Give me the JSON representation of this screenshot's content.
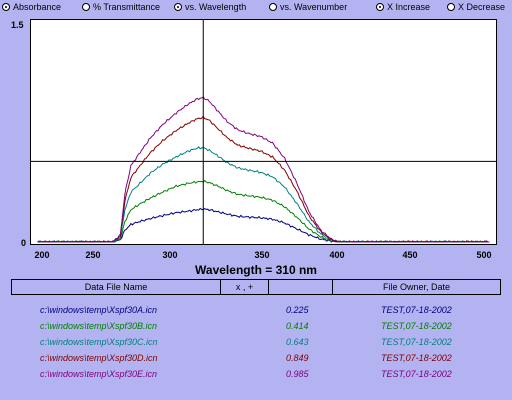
{
  "toolbar": {
    "options": [
      {
        "label": "Absorbance",
        "selected": true
      },
      {
        "label": "% Transmittance",
        "selected": false
      },
      {
        "label": "vs. Wavelength",
        "selected": true
      },
      {
        "label": "vs. Wavenumber",
        "selected": false
      },
      {
        "label": "X Increase",
        "selected": true
      },
      {
        "label": "X Decrease",
        "selected": false
      }
    ]
  },
  "chart_data": {
    "type": "line",
    "x_ticks": [
      "200",
      "250",
      "300",
      "350",
      "400",
      "450",
      "500"
    ],
    "y_ticks": [
      "1.5",
      "0"
    ],
    "xlim": [
      195,
      505
    ],
    "ylim": [
      0,
      1.5
    ],
    "cursor_x": 310,
    "cursor_y": 0.55,
    "x": [
      200,
      250,
      255,
      258,
      262,
      268,
      275,
      283,
      292,
      300,
      306,
      310,
      314,
      320,
      326,
      333,
      340,
      348,
      356,
      364,
      372,
      380,
      388,
      395,
      400,
      420,
      450,
      500
    ],
    "series": [
      {
        "color": "#000080",
        "values": [
          0,
          0,
          0.015,
          0.08,
          0.12,
          0.14,
          0.16,
          0.18,
          0.2,
          0.21,
          0.22,
          0.225,
          0.22,
          0.205,
          0.19,
          0.175,
          0.17,
          0.165,
          0.155,
          0.13,
          0.09,
          0.05,
          0.02,
          0.005,
          0,
          0,
          0,
          0
        ]
      },
      {
        "color": "#008000",
        "values": [
          0,
          0,
          0.02,
          0.14,
          0.22,
          0.26,
          0.3,
          0.34,
          0.38,
          0.4,
          0.41,
          0.414,
          0.405,
          0.38,
          0.35,
          0.325,
          0.315,
          0.305,
          0.285,
          0.24,
          0.17,
          0.09,
          0.035,
          0.008,
          0,
          0,
          0,
          0
        ]
      },
      {
        "color": "#008080",
        "values": [
          0,
          0,
          0.03,
          0.22,
          0.34,
          0.4,
          0.47,
          0.53,
          0.58,
          0.62,
          0.64,
          0.643,
          0.625,
          0.585,
          0.54,
          0.505,
          0.49,
          0.475,
          0.445,
          0.375,
          0.265,
          0.14,
          0.055,
          0.012,
          0,
          0,
          0,
          0
        ]
      },
      {
        "color": "#800000",
        "values": [
          0,
          0,
          0.04,
          0.28,
          0.44,
          0.52,
          0.61,
          0.69,
          0.76,
          0.81,
          0.84,
          0.849,
          0.83,
          0.77,
          0.71,
          0.66,
          0.64,
          0.62,
          0.58,
          0.49,
          0.35,
          0.18,
          0.07,
          0.015,
          0,
          0,
          0,
          0
        ]
      },
      {
        "color": "#800080",
        "values": [
          0,
          0,
          0.05,
          0.33,
          0.52,
          0.61,
          0.71,
          0.8,
          0.88,
          0.94,
          0.975,
          0.985,
          0.96,
          0.89,
          0.82,
          0.765,
          0.74,
          0.72,
          0.675,
          0.57,
          0.405,
          0.21,
          0.08,
          0.02,
          0,
          0,
          0,
          0
        ]
      }
    ]
  },
  "readout": "Wavelength = 310 nm",
  "table": {
    "headers": [
      "Data File Name",
      "x , +",
      "",
      "File Owner,  Date"
    ],
    "rows": [
      {
        "file": "c:\\windows\\temp\\Xspf30A.icn",
        "value": "0.225",
        "owner": "TEST,07-18-2002",
        "color": "#000080"
      },
      {
        "file": "c:\\windows\\temp\\Xspf30B.icn",
        "value": "0.414",
        "owner": "TEST,07-18-2002",
        "color": "#008000"
      },
      {
        "file": "c:\\windows\\temp\\Xspf30C.icn",
        "value": "0.643",
        "owner": "TEST,07-18-2002",
        "color": "#008080"
      },
      {
        "file": "c:\\windows\\temp\\Xspf30D.icn",
        "value": "0.849",
        "owner": "TEST,07-18-2002",
        "color": "#800000"
      },
      {
        "file": "c:\\windows\\temp\\Xspf30E.icn",
        "value": "0.985",
        "owner": "TEST,07-18-2002",
        "color": "#800080"
      }
    ]
  }
}
